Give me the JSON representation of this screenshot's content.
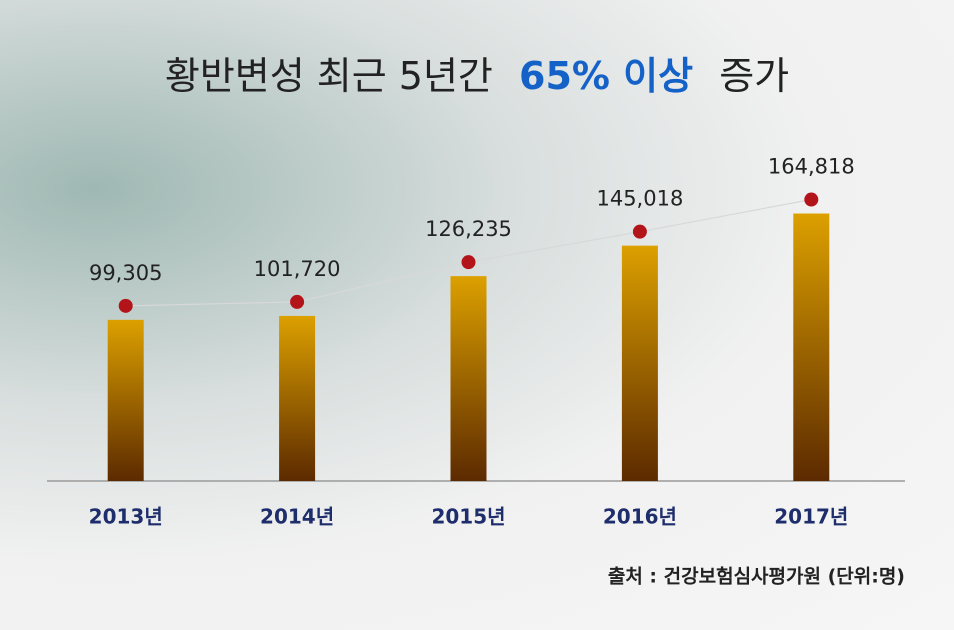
{
  "chart_data": {
    "type": "bar",
    "title": "황반변성 최근 5년간",
    "title_highlight": "65% 이상",
    "title_end": "증가",
    "categories": [
      "2013년",
      "2014년",
      "2015년",
      "2016년",
      "2017년"
    ],
    "values": [
      99305,
      101720,
      126235,
      145018,
      164818
    ],
    "value_labels": [
      "99,305",
      "101,720",
      "126,235",
      "145,018",
      "164,818"
    ],
    "ylim": [
      0,
      175000
    ],
    "color": "#dca000",
    "color_bottom": "#5c2a00",
    "dot_color": "#b3141a",
    "source": "출처 : 건강보험심사평가원 (단위:명)"
  }
}
